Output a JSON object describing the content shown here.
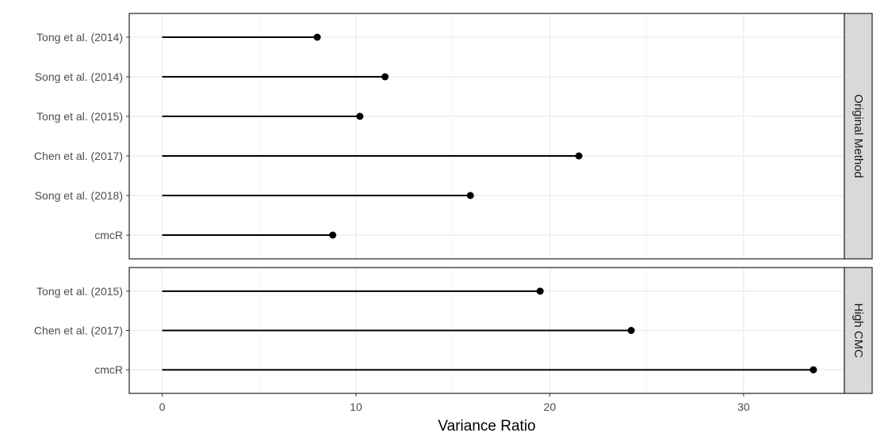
{
  "chart_data": {
    "type": "lollipop",
    "xlabel": "Variance Ratio",
    "xlim": [
      -1.7,
      35.2
    ],
    "x_ticks": [
      0,
      10,
      20,
      30
    ],
    "x_minor_ticks": [
      5,
      15,
      25
    ],
    "grid": true,
    "panels": [
      {
        "strip_label": "Original Method",
        "categories": [
          "Tong et al. (2014)",
          "Song et al. (2014)",
          "Tong et al. (2015)",
          "Chen et al. (2017)",
          "Song et al. (2018)",
          "cmcR"
        ],
        "values": [
          8.0,
          11.5,
          10.2,
          21.5,
          15.9,
          8.8
        ]
      },
      {
        "strip_label": "High CMC",
        "categories": [
          "Tong et al. (2015)",
          "Chen et al. (2017)",
          "cmcR"
        ],
        "values": [
          19.5,
          24.2,
          33.6
        ]
      }
    ]
  },
  "colors": {
    "panel_border": "#333333",
    "grid_major": "#ebebeb",
    "grid_minor": "#f5f5f5",
    "strip_fill": "#d9d9d9",
    "marks": "#000000"
  }
}
